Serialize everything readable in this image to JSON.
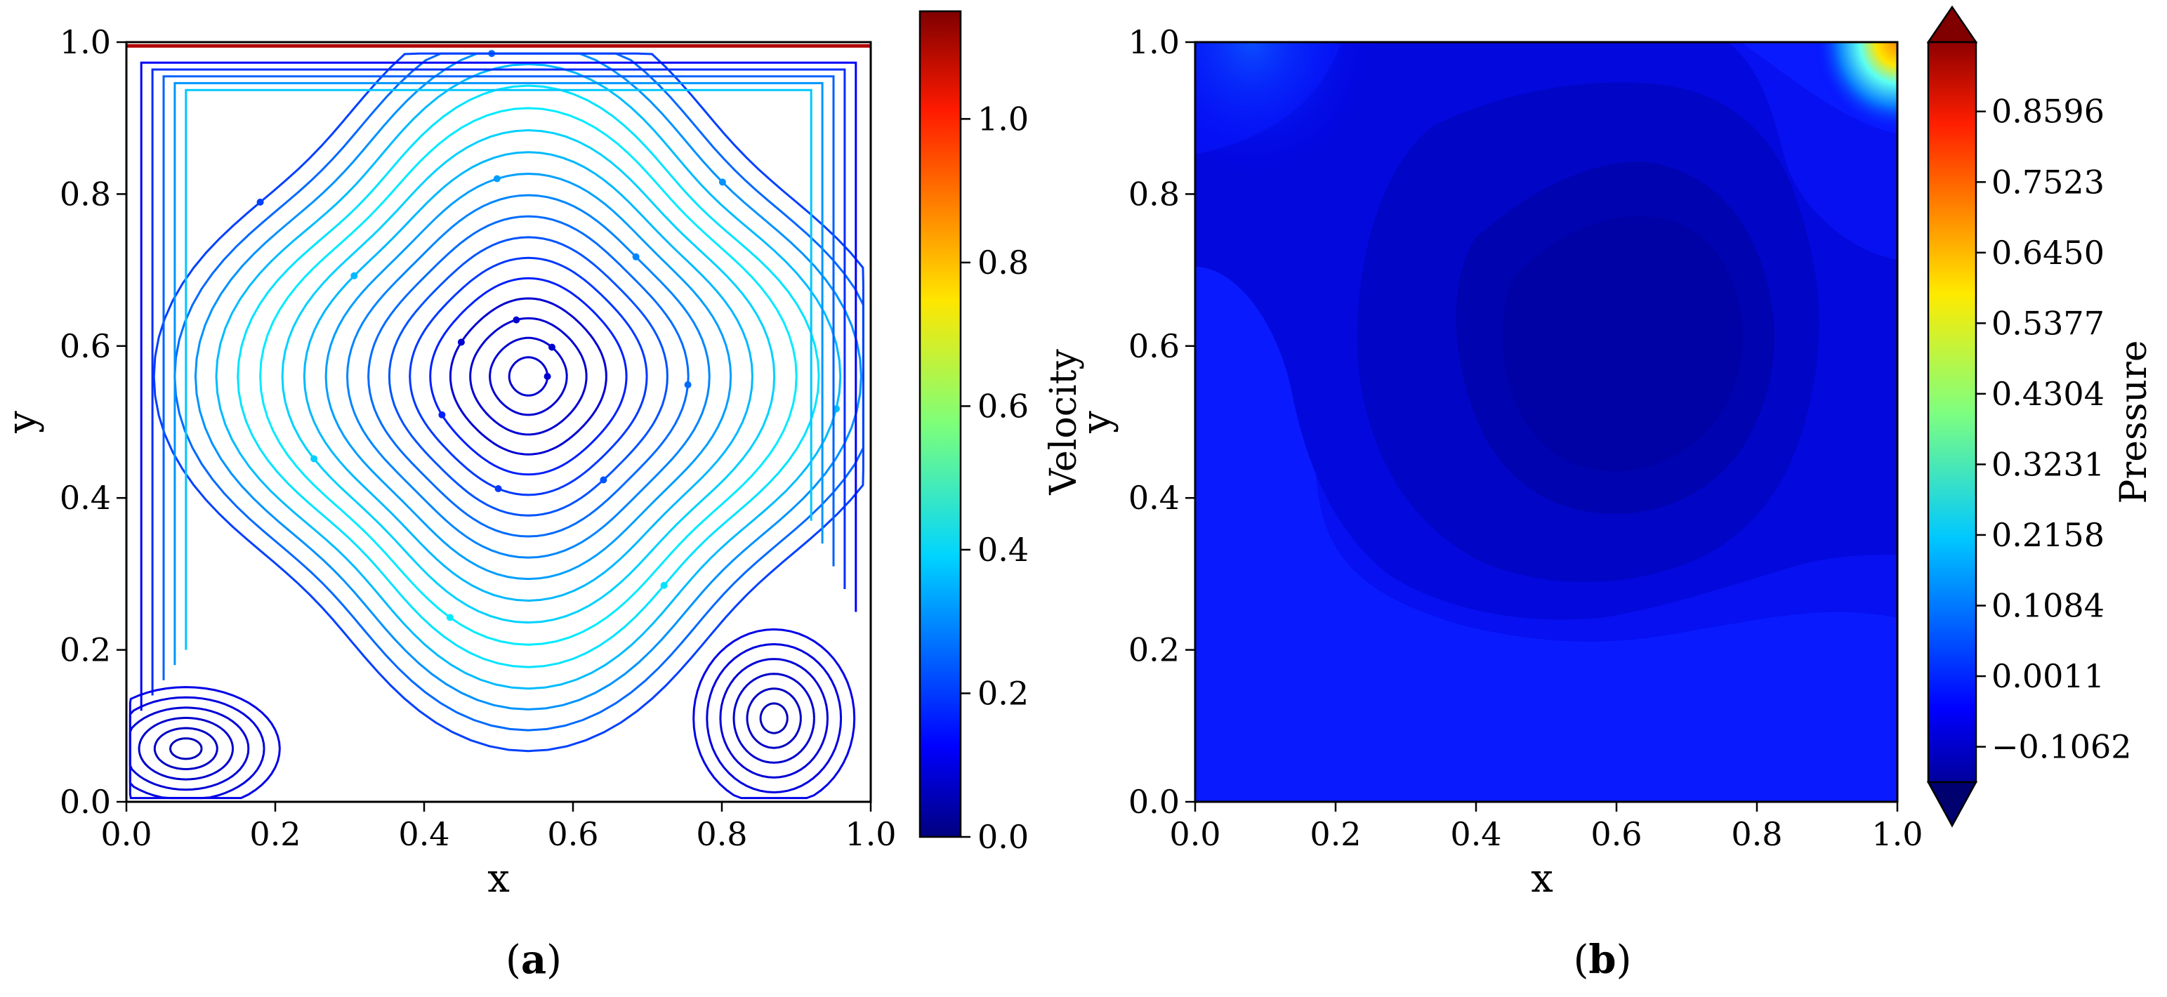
{
  "chart_data": [
    {
      "type": "streamplot",
      "panel_label": "a",
      "xlabel": "x",
      "ylabel": "y",
      "xlim": [
        0,
        1
      ],
      "ylim": [
        0,
        1
      ],
      "xticks": [
        "0.0",
        "0.2",
        "0.4",
        "0.6",
        "0.8",
        "1.0"
      ],
      "yticks": [
        "0.0",
        "0.2",
        "0.4",
        "0.6",
        "0.8",
        "1.0"
      ],
      "colormap": "jet",
      "colorbar": {
        "label": "Velocity",
        "range": [
          0,
          1.15
        ],
        "ticks": [
          "0.0",
          "0.2",
          "0.4",
          "0.6",
          "0.8",
          "1.0"
        ]
      },
      "vortices": [
        {
          "role": "primary",
          "center": [
            0.54,
            0.56
          ]
        },
        {
          "role": "bottom-left secondary",
          "center": [
            0.08,
            0.07
          ]
        },
        {
          "role": "bottom-right secondary",
          "center": [
            0.87,
            0.11
          ]
        }
      ]
    },
    {
      "type": "heatmap",
      "panel_label": "b",
      "xlabel": "x",
      "ylabel": "y",
      "xlim": [
        0,
        1
      ],
      "ylim": [
        0,
        1
      ],
      "xticks": [
        "0.0",
        "0.2",
        "0.4",
        "0.6",
        "0.8",
        "1.0"
      ],
      "yticks": [
        "0.0",
        "0.2",
        "0.4",
        "0.6",
        "0.8",
        "1.0"
      ],
      "colormap": "jet",
      "colorbar": {
        "label": "Pressure",
        "range": [
          -0.16,
          0.965
        ],
        "ticks": [
          "0.8596",
          "0.7523",
          "0.6450",
          "0.5377",
          "0.4304",
          "0.3231",
          "0.2158",
          "0.1084",
          "0.0011",
          "−0.1062"
        ],
        "extend": "both"
      },
      "features": [
        {
          "kind": "minimum",
          "location": [
            0.5,
            0.55
          ]
        },
        {
          "kind": "maximum",
          "location": [
            1.0,
            1.0
          ]
        }
      ]
    }
  ],
  "captions": {
    "a": "a",
    "b": "b"
  }
}
